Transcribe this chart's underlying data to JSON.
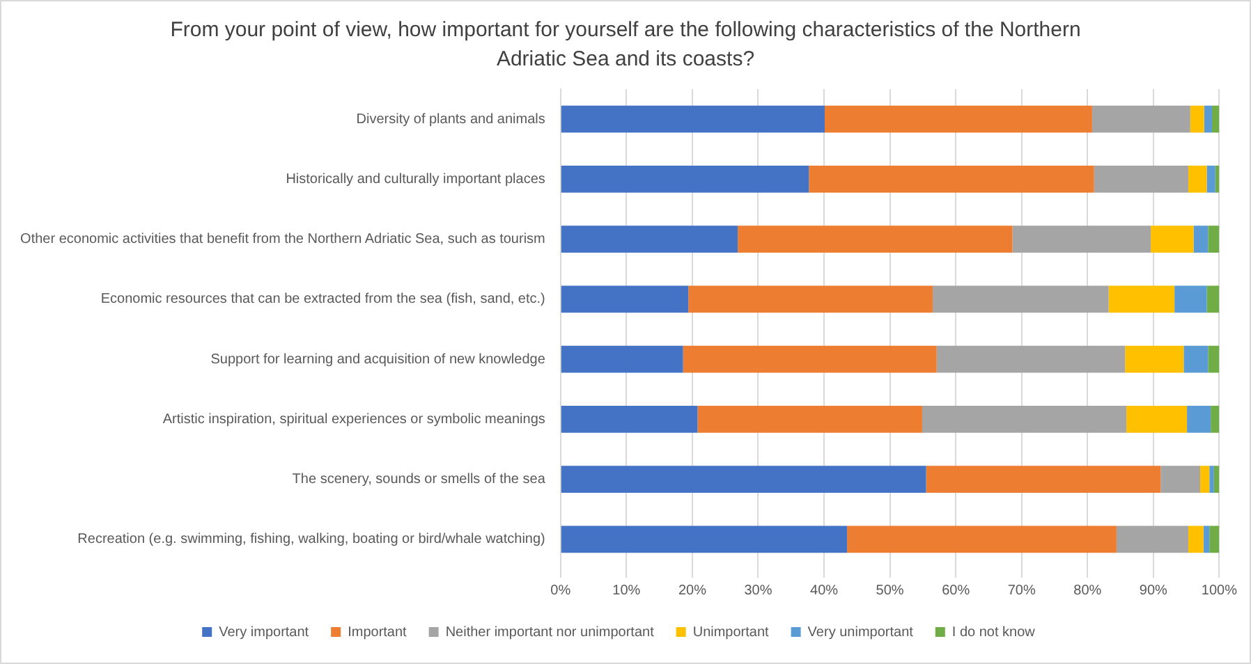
{
  "chart_data": {
    "type": "bar",
    "orientation": "horizontal",
    "stacked": true,
    "title": "From your point of view, how important for yourself are the following characteristics of the Northern Adriatic Sea and its coasts?",
    "categories": [
      "Diversity of plants and animals",
      "Historically and culturally important places",
      "Other economic activities that benefit from the Northern Adriatic Sea, such as tourism",
      "Economic resources that can be extracted from the sea (fish, sand, etc.)",
      "Support for learning and acquisition of new knowledge",
      "Artistic inspiration, spiritual experiences or symbolic meanings",
      "The scenery, sounds or smells of the sea",
      "Recreation (e.g. swimming, fishing, walking, boating or bird/whale watching)"
    ],
    "series": [
      {
        "name": "Very important",
        "color": "#4472c4",
        "values": [
          40.1,
          37.7,
          26.9,
          19.4,
          18.6,
          20.8,
          55.5,
          43.5
        ]
      },
      {
        "name": "Important",
        "color": "#ed7d31",
        "values": [
          40.6,
          43.3,
          41.7,
          37.1,
          38.5,
          34.1,
          35.6,
          40.9
        ]
      },
      {
        "name": "Neither important nor unimportant",
        "color": "#a5a5a5",
        "values": [
          14.9,
          14.3,
          21.0,
          26.7,
          28.6,
          31.0,
          6.0,
          10.9
        ]
      },
      {
        "name": "Unimportant",
        "color": "#ffc000",
        "values": [
          2.1,
          2.8,
          6.5,
          10.0,
          8.9,
          9.2,
          1.4,
          2.3
        ]
      },
      {
        "name": "Very unimportant",
        "color": "#5b9bd5",
        "values": [
          1.2,
          1.3,
          2.2,
          4.9,
          3.7,
          3.6,
          0.7,
          0.9
        ]
      },
      {
        "name": "I do not know",
        "color": "#70ad47",
        "values": [
          1.1,
          0.6,
          1.7,
          1.9,
          1.7,
          1.3,
          0.8,
          1.5
        ]
      }
    ],
    "xlim": [
      0,
      100
    ],
    "xticks": [
      {
        "value": 0,
        "label": "0%"
      },
      {
        "value": 10,
        "label": "10%"
      },
      {
        "value": 20,
        "label": "20%"
      },
      {
        "value": 30,
        "label": "30%"
      },
      {
        "value": 40,
        "label": "40%"
      },
      {
        "value": 50,
        "label": "50%"
      },
      {
        "value": 60,
        "label": "60%"
      },
      {
        "value": 70,
        "label": "70%"
      },
      {
        "value": 80,
        "label": "80%"
      },
      {
        "value": 90,
        "label": "90%"
      },
      {
        "value": 100,
        "label": "100%"
      }
    ],
    "grid": "x",
    "legend": "bottom"
  }
}
